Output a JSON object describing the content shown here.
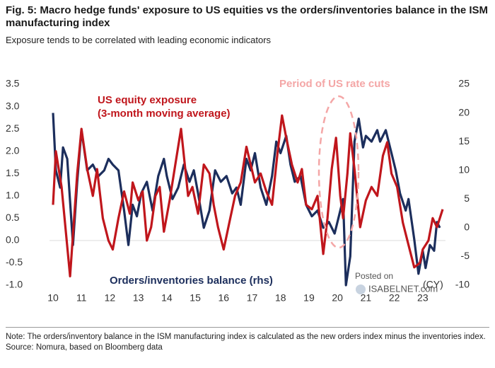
{
  "chart_data": {
    "type": "line",
    "title": "Fig. 5: Macro hedge funds' exposure to US equities vs the orders/inventories balance in the ISM manufacturing index",
    "subtitle": "Exposure tends to be correlated with leading economic indicators",
    "annotations": {
      "red_label_1": "US equity exposure",
      "red_label_2": "(3-month moving average)",
      "blue_label": "Orders/inventories balance (rhs)",
      "period": "Period of US rate cuts",
      "x_unit": "(CY)"
    },
    "watermark": [
      "Posted on",
      "ISABELNET.com"
    ],
    "note": "Note: The orders/inventory balance in the ISM manufacturing index is calculated as the new orders index minus the inventories index.",
    "source": "Source: Nomura, based on Bloomberg data",
    "xlim": [
      10,
      23.8
    ],
    "xticks": [
      10,
      11,
      12,
      13,
      14,
      15,
      16,
      17,
      18,
      19,
      20,
      21,
      22,
      23
    ],
    "ylim": [
      -1,
      3.5
    ],
    "yticks": [
      {
        "value": 3.5,
        "label": "3.5"
      },
      {
        "value": 3,
        "label": "3.0"
      },
      {
        "value": 2.5,
        "label": "2.5"
      },
      {
        "value": 2,
        "label": "2.0"
      },
      {
        "value": 1.5,
        "label": "1.5"
      },
      {
        "value": 1,
        "label": "1.0"
      },
      {
        "value": 0.5,
        "label": "0.5"
      },
      {
        "value": 0,
        "label": "0.0"
      },
      {
        "value": -0.5,
        "label": "-0.5"
      },
      {
        "value": -1,
        "label": "-1.0"
      }
    ],
    "y2lim": [
      -10,
      25
    ],
    "y2ticks": [
      25,
      20,
      15,
      10,
      5,
      0,
      -5,
      -10
    ],
    "series": [
      {
        "name": "US equity exposure",
        "color": "#c0161c",
        "x": [
          10.0,
          10.1,
          10.3,
          10.6,
          10.85,
          11.0,
          11.2,
          11.4,
          11.55,
          11.75,
          11.95,
          12.1,
          12.3,
          12.5,
          12.7,
          12.8,
          13.0,
          13.15,
          13.3,
          13.45,
          13.6,
          13.75,
          13.9,
          14.1,
          14.3,
          14.5,
          14.75,
          14.9,
          15.1,
          15.3,
          15.5,
          15.65,
          15.8,
          16.0,
          16.2,
          16.4,
          16.6,
          16.8,
          16.95,
          17.1,
          17.3,
          17.5,
          17.7,
          17.9,
          18.05,
          18.2,
          18.4,
          18.6,
          18.75,
          18.9,
          19.1,
          19.3,
          19.5,
          19.65,
          19.8,
          19.95,
          20.1,
          20.2,
          20.35,
          20.45,
          20.6,
          20.8,
          21.0,
          21.2,
          21.4,
          21.6,
          21.75,
          21.9,
          22.1,
          22.3,
          22.5,
          22.7,
          22.9,
          23.0,
          23.2,
          23.35,
          23.5,
          23.7
        ],
        "values": [
          0.8,
          2.0,
          1.2,
          -0.8,
          1.5,
          2.5,
          1.6,
          1.0,
          1.6,
          0.5,
          0.0,
          -0.2,
          0.5,
          1.1,
          0.6,
          1.3,
          0.9,
          1.1,
          0.0,
          0.3,
          1.0,
          1.2,
          0.2,
          0.9,
          1.7,
          2.5,
          1.0,
          1.2,
          0.6,
          1.7,
          1.5,
          0.8,
          0.3,
          -0.2,
          0.4,
          1.0,
          1.3,
          2.1,
          1.7,
          1.3,
          1.5,
          1.1,
          0.8,
          2.0,
          2.8,
          2.3,
          1.7,
          1.3,
          1.6,
          0.8,
          0.7,
          1.0,
          -0.3,
          0.5,
          1.6,
          2.3,
          1.0,
          0.5,
          1.5,
          2.4,
          1.6,
          0.3,
          0.9,
          1.2,
          1.0,
          1.9,
          2.2,
          1.5,
          1.2,
          0.4,
          -0.1,
          -0.6,
          -0.5,
          -0.2,
          0.0,
          0.5,
          0.3,
          0.7
        ]
      },
      {
        "name": "Orders/inventories balance",
        "color": "#1c2e5c",
        "axis": "y2",
        "x": [
          10.0,
          10.1,
          10.25,
          10.35,
          10.5,
          10.7,
          10.85,
          11.0,
          11.2,
          11.4,
          11.6,
          11.8,
          11.95,
          12.1,
          12.3,
          12.5,
          12.65,
          12.8,
          12.95,
          13.1,
          13.3,
          13.5,
          13.7,
          13.9,
          14.0,
          14.2,
          14.4,
          14.6,
          14.8,
          14.95,
          15.1,
          15.3,
          15.5,
          15.7,
          15.9,
          16.1,
          16.3,
          16.45,
          16.6,
          16.8,
          16.95,
          17.1,
          17.3,
          17.5,
          17.7,
          17.85,
          18.0,
          18.2,
          18.35,
          18.5,
          18.7,
          18.9,
          19.1,
          19.3,
          19.5,
          19.7,
          19.9,
          20.1,
          20.2,
          20.3,
          20.45,
          20.6,
          20.75,
          20.9,
          21.0,
          21.2,
          21.4,
          21.5,
          21.7,
          21.9,
          22.05,
          22.2,
          22.4,
          22.5,
          22.7,
          22.85,
          23.0,
          23.1,
          23.25,
          23.4,
          23.5,
          23.6
        ],
        "values": [
          20,
          10,
          7,
          14,
          12,
          -3,
          8,
          17,
          10,
          11,
          9,
          10,
          12,
          11,
          10,
          3,
          -3,
          4,
          2,
          6,
          8,
          3,
          9,
          12,
          9,
          5,
          7,
          11,
          8,
          10,
          6,
          0,
          3,
          10,
          8,
          9,
          6,
          7,
          4,
          12,
          10,
          13,
          7,
          4,
          9,
          15,
          13,
          16,
          11,
          8,
          9,
          4,
          2,
          3,
          0,
          1,
          -1,
          3,
          5,
          -10,
          -5,
          15,
          19,
          14,
          16,
          15,
          17,
          15,
          17,
          13,
          10,
          6,
          3,
          5,
          -2,
          -8,
          -4,
          -7,
          -3,
          -4,
          1,
          0
        ]
      }
    ]
  }
}
